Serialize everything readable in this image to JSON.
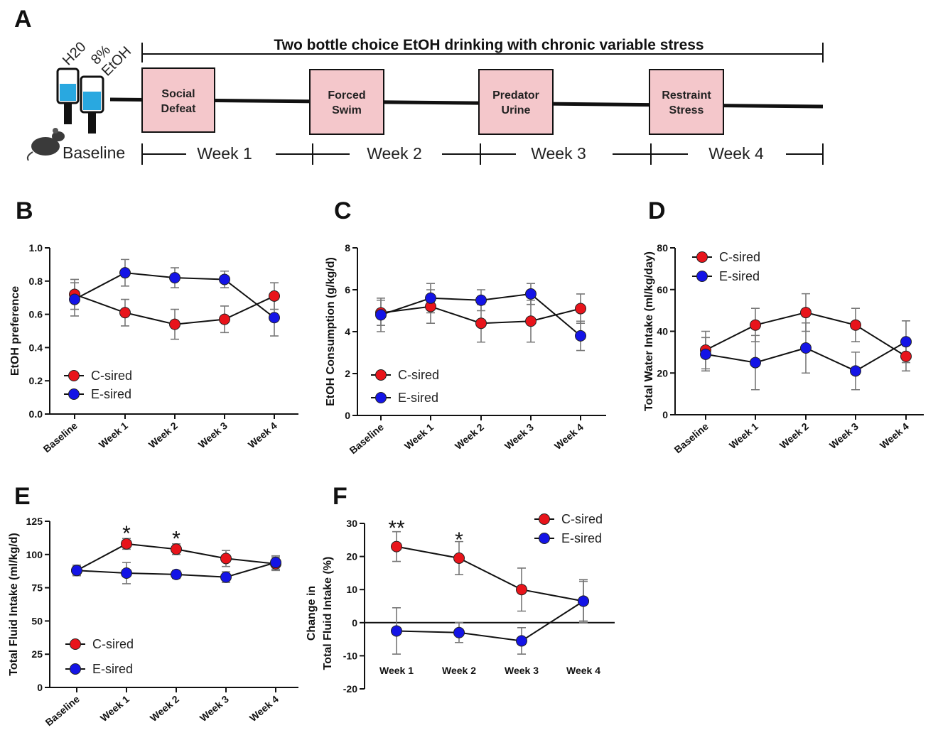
{
  "panel_a": {
    "letter": "A",
    "title": "Two bottle choice EtOH drinking with chronic variable stress",
    "bottle_labels": [
      "H20",
      "8%",
      "EtOH"
    ],
    "baseline_label": "Baseline",
    "stressors": [
      {
        "line1": "Social",
        "line2": "Defeat"
      },
      {
        "line1": "Forced",
        "line2": "Swim"
      },
      {
        "line1": "Predator",
        "line2": "Urine"
      },
      {
        "line1": "Restraint",
        "line2": "Stress"
      }
    ],
    "weeks": [
      "Week 1",
      "Week 2",
      "Week 3",
      "Week 4"
    ],
    "colors": {
      "box_fill": "#f4c7cb",
      "bottle_liquid": "#29a8e0"
    }
  },
  "colors": {
    "c_sired": "#e8141b",
    "e_sired": "#1414e6"
  },
  "chart_data": [
    {
      "letter": "B",
      "type": "line",
      "ylabel": "EtOH preference",
      "categories": [
        "Baseline",
        "Week 1",
        "Week 2",
        "Week 3",
        "Week 4"
      ],
      "ylim": [
        0,
        1.0
      ],
      "yticks": [
        0,
        0.2,
        0.4,
        0.6,
        0.8,
        1.0
      ],
      "ytick_labels": [
        "0.0",
        "0.2",
        "0.4",
        "0.6",
        "0.8",
        "1.0"
      ],
      "legend_placement": "bottom-left",
      "series": [
        {
          "name": "C-sired",
          "color": "#e8141b",
          "values": [
            0.72,
            0.61,
            0.54,
            0.57,
            0.71
          ],
          "errors": [
            0.09,
            0.08,
            0.09,
            0.08,
            0.08
          ]
        },
        {
          "name": "E-sired",
          "color": "#1414e6",
          "values": [
            0.69,
            0.85,
            0.82,
            0.81,
            0.58
          ],
          "errors": [
            0.1,
            0.08,
            0.06,
            0.05,
            0.11
          ]
        }
      ],
      "annotations": []
    },
    {
      "letter": "C",
      "type": "line",
      "ylabel": "EtOH Consumption (g/kg/d)",
      "categories": [
        "Baseline",
        "Week 1",
        "Week 2",
        "Week 3",
        "Week 4"
      ],
      "ylim": [
        0,
        8
      ],
      "yticks": [
        0,
        2,
        4,
        6,
        8
      ],
      "ytick_labels": [
        "0",
        "2",
        "4",
        "6",
        "8"
      ],
      "legend_placement": "bottom-left",
      "series": [
        {
          "name": "C-sired",
          "color": "#e8141b",
          "values": [
            4.9,
            5.2,
            4.4,
            4.5,
            5.1
          ],
          "errors": [
            0.6,
            0.8,
            0.9,
            1.0,
            0.7
          ]
        },
        {
          "name": "E-sired",
          "color": "#1414e6",
          "values": [
            4.8,
            5.6,
            5.5,
            5.8,
            3.8
          ],
          "errors": [
            0.8,
            0.7,
            0.5,
            0.5,
            0.7
          ]
        }
      ],
      "annotations": []
    },
    {
      "letter": "D",
      "type": "line",
      "ylabel": "Total Water Intake (ml/kg/day)",
      "categories": [
        "Baseline",
        "Week 1",
        "Week 2",
        "Week 3",
        "Week 4"
      ],
      "ylim": [
        0,
        80
      ],
      "yticks": [
        0,
        20,
        40,
        60,
        80
      ],
      "ytick_labels": [
        "0",
        "20",
        "40",
        "60",
        "80"
      ],
      "legend_placement": "top-left",
      "series": [
        {
          "name": "C-sired",
          "color": "#e8141b",
          "values": [
            31,
            43,
            49,
            43,
            28
          ],
          "errors": [
            9,
            8,
            9,
            8,
            7
          ]
        },
        {
          "name": "E-sired",
          "color": "#1414e6",
          "values": [
            29,
            25,
            32,
            21,
            35
          ],
          "errors": [
            8,
            13,
            12,
            9,
            10
          ]
        }
      ],
      "annotations": []
    },
    {
      "letter": "E",
      "type": "line",
      "ylabel": "Total Fluid Intake (ml/kg/d)",
      "categories": [
        "Baseline",
        "Week 1",
        "Week 2",
        "Week 3",
        "Week 4"
      ],
      "ylim": [
        0,
        125
      ],
      "yticks": [
        0,
        25,
        50,
        75,
        100,
        125
      ],
      "ytick_labels": [
        "0",
        "25",
        "50",
        "75",
        "100",
        "125"
      ],
      "legend_placement": "bottom-left",
      "series": [
        {
          "name": "C-sired",
          "color": "#e8141b",
          "values": [
            88,
            108,
            104,
            97,
            93
          ],
          "errors": [
            4,
            4,
            4,
            6,
            5
          ]
        },
        {
          "name": "E-sired",
          "color": "#1414e6",
          "values": [
            88,
            86,
            85,
            83,
            94
          ],
          "errors": [
            3,
            8,
            3,
            4,
            5
          ]
        }
      ],
      "annotations": [
        {
          "text": "*",
          "category": "Week 1",
          "y": 117
        },
        {
          "text": "*",
          "category": "Week 2",
          "y": 113
        }
      ]
    },
    {
      "letter": "F",
      "type": "line",
      "ylabel_lines": [
        "Change in",
        "Total Fluid Intake (%)"
      ],
      "categories": [
        "Week 1",
        "Week 2",
        "Week 3",
        "Week 4"
      ],
      "ylim": [
        -20,
        30
      ],
      "yticks": [
        -20,
        -10,
        0,
        10,
        20,
        30
      ],
      "ytick_labels": [
        "-20",
        "-10",
        "0",
        "10",
        "20",
        "30"
      ],
      "legend_placement": "top-right",
      "series": [
        {
          "name": "C-sired",
          "color": "#e8141b",
          "values": [
            23,
            19.5,
            10,
            6.5
          ],
          "errors": [
            4.5,
            5,
            6.5,
            6
          ]
        },
        {
          "name": "E-sired",
          "color": "#1414e6",
          "values": [
            -2.5,
            -3,
            -5.5,
            6.5
          ],
          "errors": [
            7,
            3,
            4,
            6.5
          ]
        }
      ],
      "annotations": [
        {
          "text": "**",
          "category": "Week 1",
          "y": 29
        },
        {
          "text": "*",
          "category": "Week 2",
          "y": 25.5
        }
      ]
    }
  ]
}
